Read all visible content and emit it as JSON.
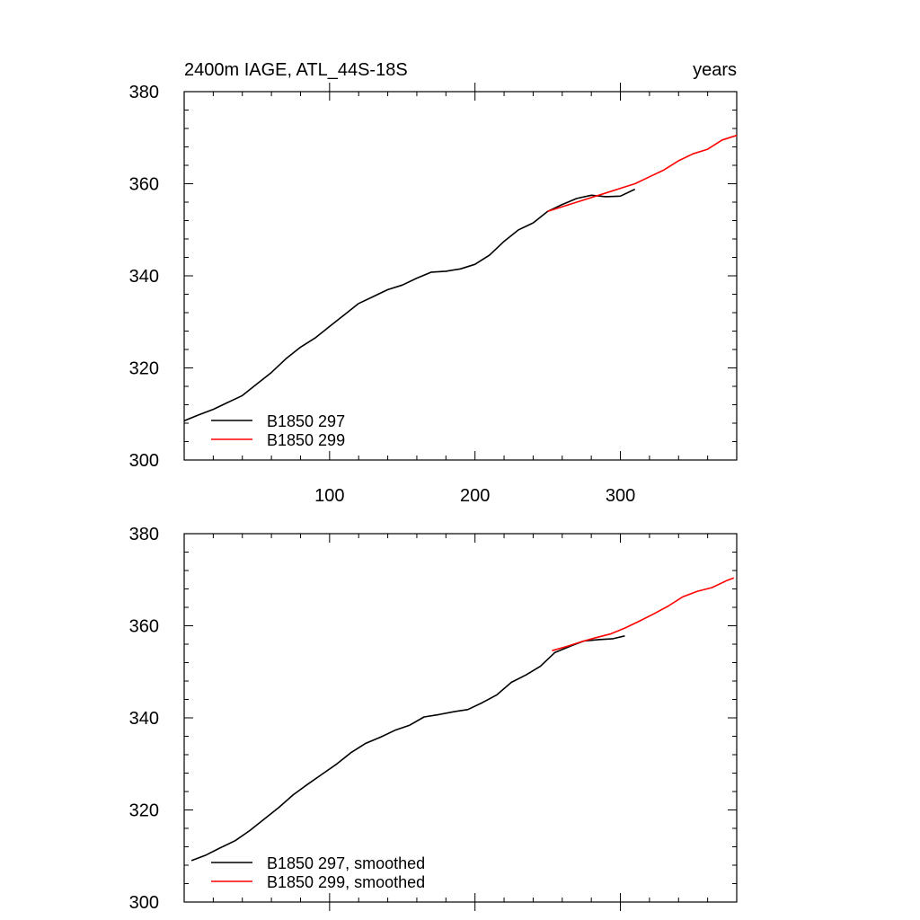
{
  "chart_data": [
    {
      "type": "line",
      "title_left": "2400m IAGE, ATL_44S-18S",
      "title_right": "years",
      "xlabel": "",
      "ylabel": "",
      "xlim": [
        0,
        380
      ],
      "ylim": [
        300,
        380
      ],
      "xticks": [
        100,
        200,
        300
      ],
      "yticks": [
        300,
        320,
        340,
        360,
        380
      ],
      "show_x_tick_labels": true,
      "legend_position": "bottom-left",
      "series": [
        {
          "name": "B1850 297",
          "color": "#000000",
          "x": [
            0,
            10,
            20,
            30,
            40,
            50,
            60,
            70,
            80,
            90,
            100,
            110,
            120,
            130,
            140,
            150,
            160,
            170,
            180,
            190,
            200,
            210,
            220,
            230,
            240,
            250,
            260,
            270,
            280,
            290,
            300,
            310
          ],
          "y": [
            308.5,
            309.8,
            311.0,
            312.5,
            314.0,
            316.5,
            319.0,
            322.0,
            324.5,
            326.5,
            329.0,
            331.5,
            334.0,
            335.5,
            337.0,
            338.0,
            339.5,
            340.8,
            341.0,
            341.5,
            342.5,
            344.5,
            347.5,
            350.0,
            351.5,
            354.0,
            355.5,
            356.8,
            357.5,
            357.2,
            357.3,
            358.8
          ]
        },
        {
          "name": "B1850 299",
          "color": "#ff0000",
          "x": [
            250,
            260,
            270,
            280,
            290,
            300,
            310,
            320,
            330,
            340,
            350,
            360,
            370,
            380
          ],
          "y": [
            354.0,
            355.0,
            356.0,
            357.0,
            358.0,
            359.0,
            360.0,
            361.5,
            363.0,
            365.0,
            366.5,
            367.5,
            369.5,
            370.5
          ]
        }
      ]
    },
    {
      "type": "line",
      "xlabel": "",
      "ylabel": "",
      "xlim": [
        0,
        380
      ],
      "ylim": [
        300,
        380
      ],
      "xticks": [
        100,
        200,
        300
      ],
      "yticks": [
        300,
        320,
        340,
        360,
        380
      ],
      "show_x_tick_labels": false,
      "legend_position": "bottom-left",
      "series": [
        {
          "name": "B1850 297, smoothed",
          "color": "#000000",
          "x": [
            5,
            15,
            25,
            35,
            45,
            55,
            65,
            75,
            85,
            95,
            105,
            115,
            125,
            135,
            145,
            155,
            165,
            175,
            185,
            195,
            205,
            215,
            225,
            235,
            245,
            255,
            265,
            275,
            285,
            295,
            303
          ],
          "y": [
            309.0,
            310.2,
            311.8,
            313.3,
            315.5,
            318.0,
            320.5,
            323.3,
            325.6,
            327.8,
            330.0,
            332.5,
            334.5,
            335.8,
            337.3,
            338.4,
            340.2,
            340.7,
            341.3,
            341.8,
            343.3,
            345.0,
            347.7,
            349.3,
            351.2,
            354.2,
            355.5,
            356.7,
            357.0,
            357.2,
            357.8
          ]
        },
        {
          "name": "B1850 299, smoothed",
          "color": "#ff0000",
          "x": [
            253,
            263,
            273,
            283,
            293,
            303,
            313,
            323,
            333,
            343,
            353,
            363,
            373,
            378
          ],
          "y": [
            354.6,
            355.5,
            356.5,
            357.4,
            358.2,
            359.5,
            361.0,
            362.6,
            364.3,
            366.3,
            367.5,
            368.3,
            369.8,
            370.4
          ]
        }
      ]
    }
  ]
}
